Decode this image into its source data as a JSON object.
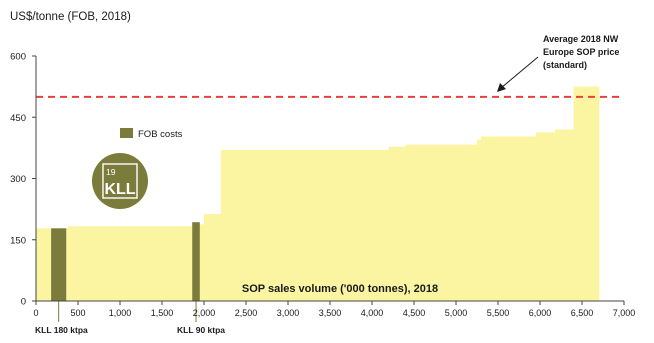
{
  "chart_data": {
    "type": "area",
    "ylabel": "US$/tonne (FOB, 2018)",
    "xlabel": "SOP sales volume ('000 tonnes), 2018",
    "xlim": [
      0,
      7000
    ],
    "ylim": [
      0,
      600
    ],
    "xticks": [
      0,
      500,
      1000,
      1500,
      2000,
      2500,
      3000,
      3500,
      4000,
      4500,
      5000,
      5500,
      6000,
      6500,
      7000
    ],
    "xtick_labels": [
      "0",
      "500",
      "1,000",
      "1,500",
      "2,000",
      "2,500",
      "3,000",
      "3,500",
      "4,000",
      "4,500",
      "5,000",
      "5,500",
      "6,000",
      "6,500",
      "7,000"
    ],
    "yticks": [
      0,
      150,
      300,
      450,
      600
    ],
    "ytick_labels": [
      "0",
      "150",
      "300",
      "450",
      "600"
    ],
    "grid": false,
    "supply_curve": [
      {
        "x0": 0,
        "x1": 380,
        "y": 178
      },
      {
        "x0": 380,
        "x1": 1900,
        "y": 183
      },
      {
        "x0": 1900,
        "x1": 2000,
        "y": 188
      },
      {
        "x0": 2000,
        "x1": 2200,
        "y": 213
      },
      {
        "x0": 2200,
        "x1": 4200,
        "y": 370
      },
      {
        "x0": 4200,
        "x1": 4400,
        "y": 378
      },
      {
        "x0": 4400,
        "x1": 5250,
        "y": 383
      },
      {
        "x0": 5250,
        "x1": 5300,
        "y": 395
      },
      {
        "x0": 5300,
        "x1": 5950,
        "y": 403
      },
      {
        "x0": 5950,
        "x1": 6180,
        "y": 413
      },
      {
        "x0": 6180,
        "x1": 6400,
        "y": 420
      },
      {
        "x0": 6400,
        "x1": 6700,
        "y": 525
      }
    ],
    "fob_bars": [
      {
        "x0": 180,
        "x1": 360,
        "y": 178,
        "label": "KLL 180 ktpa"
      },
      {
        "x0": 1860,
        "x1": 1950,
        "y": 193,
        "label": "KLL 90 ktpa"
      }
    ],
    "reference_line": {
      "y": 500,
      "label": "Average 2018 NW Europe SOP price (standard)"
    },
    "legend": {
      "entries": [
        {
          "name": "FOB costs"
        }
      ],
      "placement": "upper-left"
    },
    "colors": {
      "supply": "#fbf5a2",
      "fob": "#7b7c3b",
      "reference": "#e8413a",
      "axis": "#444444",
      "text": "#1a1a1a"
    }
  },
  "annotation": {
    "lines": [
      "Average 2018 NW",
      "Europe SOP price",
      "(standard)"
    ]
  },
  "logo": {
    "number": "19",
    "text": "KLL",
    "color": "#7b7c3b"
  }
}
